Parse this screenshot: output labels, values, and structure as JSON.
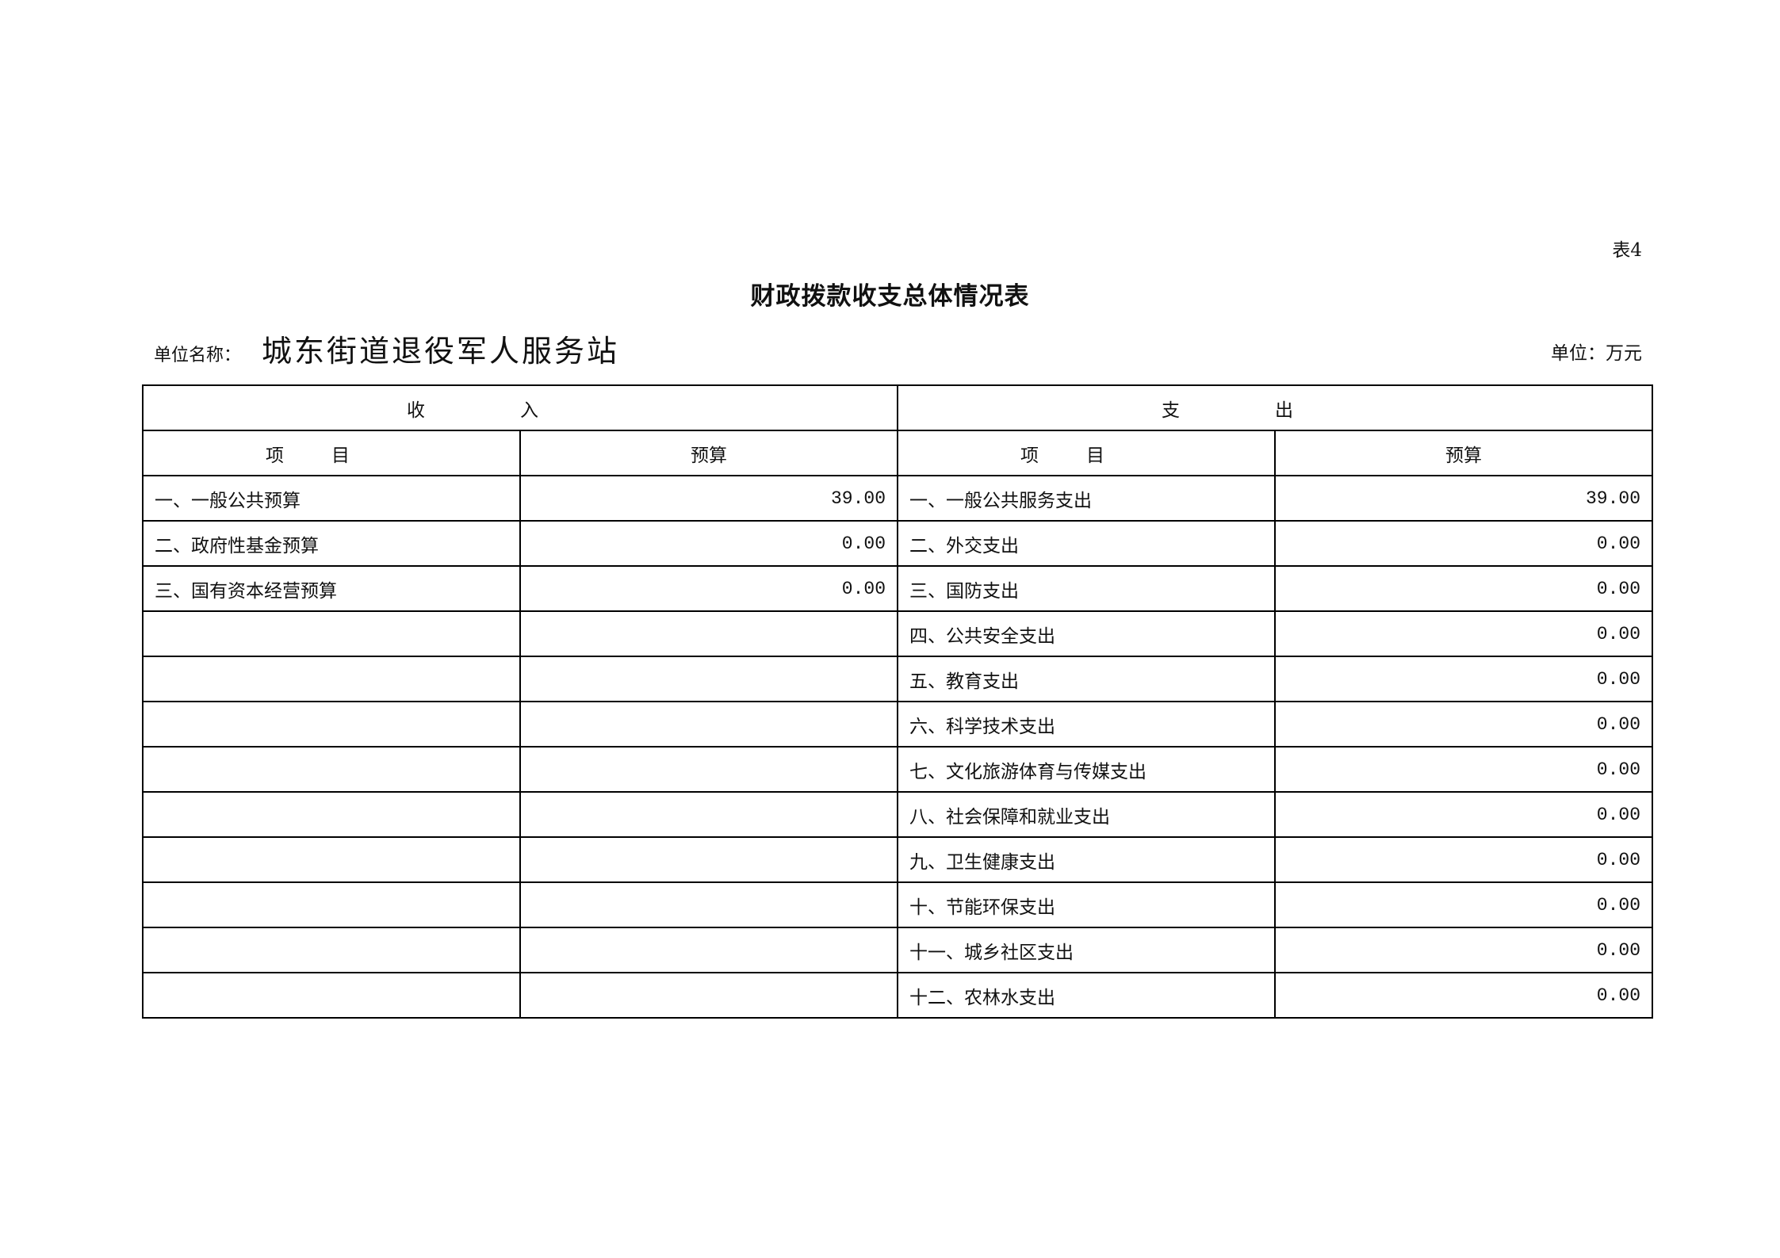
{
  "doc": {
    "tag": "表4",
    "title": "财政拨款收支总体情况表",
    "unit_label": "单位名称：",
    "unit_name": "城东街道退役军人服务站",
    "unit": "单位：万元"
  },
  "table": {
    "income_header": "收入",
    "expense_header": "支出",
    "col_item": "项目",
    "col_budget": "预算",
    "rows": [
      {
        "in_item": "一、一般公共预算",
        "in_val": "39.00",
        "out_item": "一、一般公共服务支出",
        "out_val": "39.00"
      },
      {
        "in_item": "二、政府性基金预算",
        "in_val": "0.00",
        "out_item": "二、外交支出",
        "out_val": "0.00"
      },
      {
        "in_item": "三、国有资本经营预算",
        "in_val": "0.00",
        "out_item": "三、国防支出",
        "out_val": "0.00"
      },
      {
        "in_item": "",
        "in_val": "",
        "out_item": "四、公共安全支出",
        "out_val": "0.00"
      },
      {
        "in_item": "",
        "in_val": "",
        "out_item": "五、教育支出",
        "out_val": "0.00"
      },
      {
        "in_item": "",
        "in_val": "",
        "out_item": "六、科学技术支出",
        "out_val": "0.00"
      },
      {
        "in_item": "",
        "in_val": "",
        "out_item": "七、文化旅游体育与传媒支出",
        "out_val": "0.00"
      },
      {
        "in_item": "",
        "in_val": "",
        "out_item": "八、社会保障和就业支出",
        "out_val": "0.00"
      },
      {
        "in_item": "",
        "in_val": "",
        "out_item": "九、卫生健康支出",
        "out_val": "0.00"
      },
      {
        "in_item": "",
        "in_val": "",
        "out_item": "十、节能环保支出",
        "out_val": "0.00"
      },
      {
        "in_item": "",
        "in_val": "",
        "out_item": "十一、城乡社区支出",
        "out_val": "0.00"
      },
      {
        "in_item": "",
        "in_val": "",
        "out_item": "十二、农林水支出",
        "out_val": "0.00"
      }
    ]
  }
}
